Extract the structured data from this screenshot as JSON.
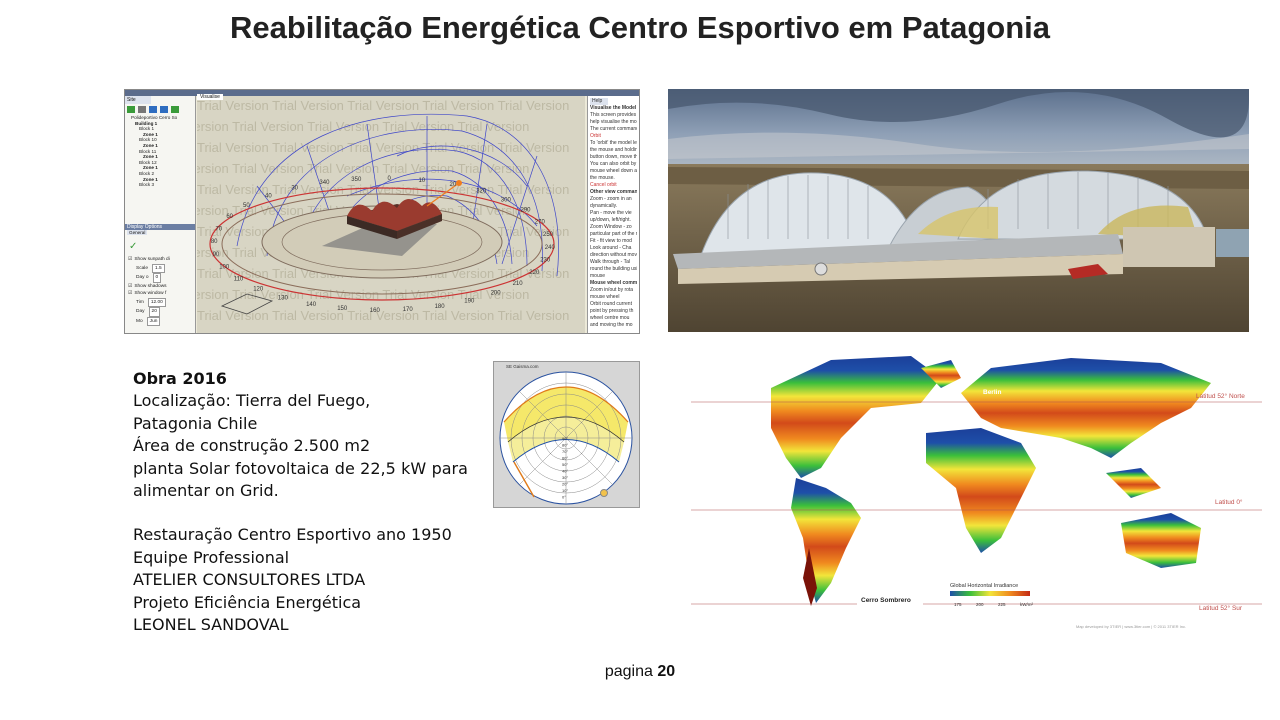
{
  "title": "Reabilitação Energética Centro Esportivo em Patagonia",
  "info": {
    "obra": "Obra  2016",
    "localizacao": "Localização: Tierra del Fuego,",
    "regiao": "Patagonia Chile",
    "area": "Área de construção 2.500 m2",
    "planta_words": [
      "planta",
      "Solar",
      "fotovoltaica",
      "de",
      "22,5",
      "kW",
      "para"
    ],
    "alimentar": "alimentar on Grid.",
    "restauracao": "Restauração Centro Esportivo ano 1950",
    "equipe": "Equipe Professional",
    "atelier": "ATELIER CONSULTORES LTDA",
    "projeto": "Projeto Eficiência Energética",
    "leonel": "LEONEL SANDOVAL"
  },
  "footer": {
    "label": "pagina",
    "number": "20"
  },
  "software": {
    "tab_site": "Site",
    "tab_visualise": "Visualise",
    "tab_help": "Help",
    "tree": [
      "Polideportivo Cerro So",
      "Building 1",
      "Block 1",
      "Zone 1",
      "Block 10",
      "Zone 1",
      "Block 11",
      "Zone 1",
      "Block 12",
      "Zone 1",
      "Block 2",
      "Zone 1",
      "Block 3"
    ],
    "display_options": "Display Options",
    "general_tab": "General",
    "options": [
      "Show sunpath di",
      "Scale",
      "Day o",
      "Show shadows",
      "Show window f",
      "Tim",
      "Day",
      "Mo"
    ],
    "option_values": [
      "1.5",
      "0",
      "12.00",
      "20",
      "Jun"
    ],
    "help_title": "Visualise the Model",
    "help_lines": [
      "This screen provides t",
      "help visualise the mod",
      "The current command",
      "Orbit",
      "To 'orbit' the model left",
      "the mouse and holdin",
      "button down, move the",
      "You can also orbit by h",
      "mouse wheel down an",
      "the mouse.",
      "Cancel orbit",
      "Other view command",
      "Zoom - zoom in an",
      "dynamically.",
      "Pan - move the vie",
      "up/down, left/right.",
      "Zoom Window - zo",
      "particular part of the m",
      "Fit - fit view to mod",
      "Look around - Cha",
      "direction without movin",
      "Walk through - Tal",
      "round the building usin",
      "mouse",
      "Mouse wheel comma",
      "Zoom in/out by rota",
      "mouse wheel",
      "Orbit round current",
      "point by pressing th",
      "wheel centre mou",
      "and moving the mo"
    ],
    "watermark": "Trial Version",
    "compass_labels": [
      "340",
      "350",
      "0",
      "10",
      "20",
      "320",
      "300",
      "290",
      "270",
      "250",
      "240",
      "230",
      "220",
      "210",
      "200",
      "190",
      "180",
      "170",
      "160",
      "150",
      "140",
      "130",
      "120",
      "110",
      "100",
      "90",
      "80",
      "70",
      "60",
      "50",
      "40",
      "30"
    ]
  },
  "sunpath": {
    "header": "SE Gaisma.com",
    "labels": [
      "90°",
      "80°",
      "70°",
      "60°",
      "50°",
      "40°",
      "30°",
      "20°",
      "10°",
      "0°"
    ]
  },
  "map": {
    "labels": {
      "berlin": "Berlin",
      "lat_north": "Latitud 52° Norte",
      "lat_zero": "Latitud 0°",
      "lat_south": "Latitud 52° Sur",
      "cerro": "Cerro Sombrero",
      "legend_title": "Global Horizontal Irradiance",
      "legend_ticks": [
        "175",
        "200",
        "225",
        "kW/m²"
      ],
      "credit": "Map developed by 3TIER  |  www.3tier.com  |  © 2011 3TIER Inc."
    },
    "colors": {
      "blue": "#1e4fa8",
      "green": "#3bbf3b",
      "yellow": "#f2e53a",
      "orange": "#f08a1f",
      "red": "#c42a15",
      "dark_red": "#7a1208"
    }
  }
}
